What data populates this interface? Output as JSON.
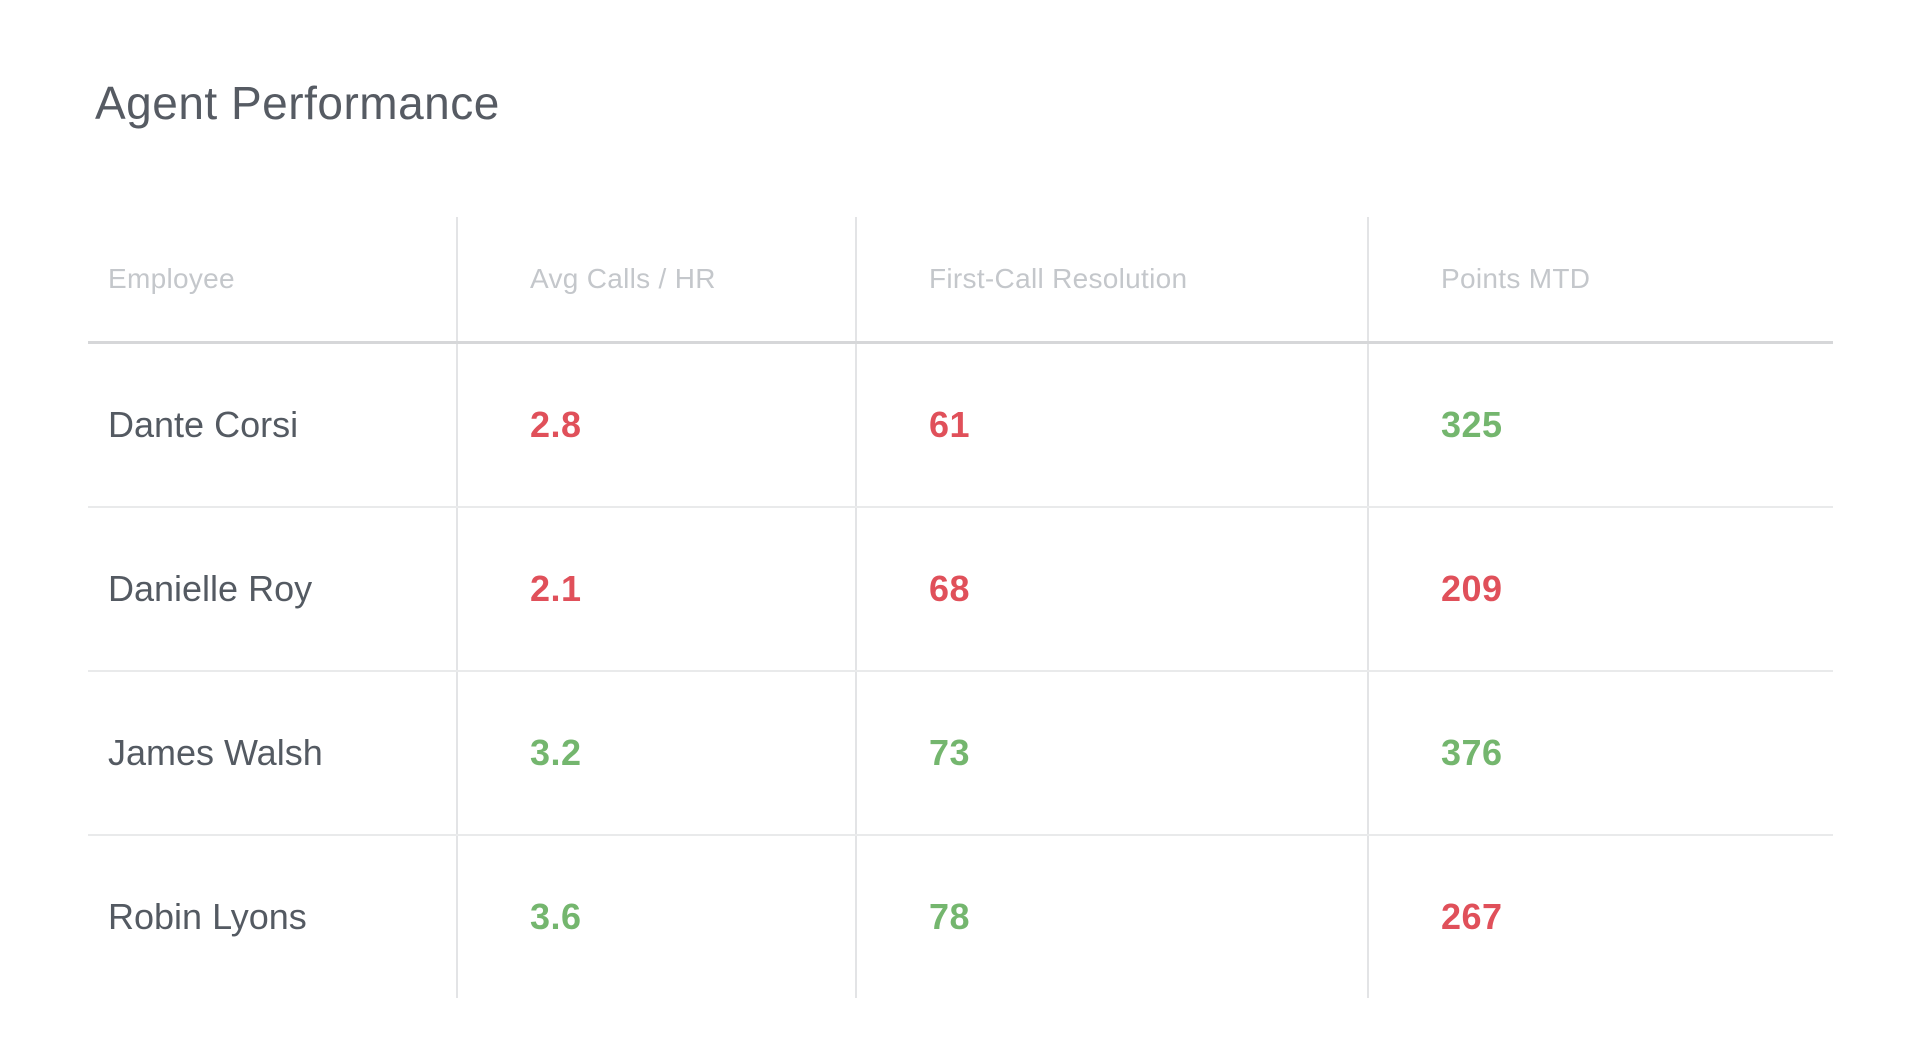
{
  "page": {
    "title": "Agent Performance"
  },
  "theme": {
    "background": "#ffffff",
    "title_color": "#565b63",
    "header_color": "#c4c7cb",
    "name_color": "#545a62",
    "negative": "#e0505a",
    "positive": "#74b66e",
    "header_line": "#d6d7d9",
    "row_line": "#e9eaeb",
    "col_line": "#e3e4e6"
  },
  "table": {
    "columns": {
      "employee": "Employee",
      "avg_calls": "Avg Calls / HR",
      "fcr": "First-Call Resolution",
      "points": "Points MTD"
    },
    "rows": [
      {
        "name": "Dante Corsi",
        "avg_calls": {
          "value": "2.8",
          "status": "red"
        },
        "fcr": {
          "value": "61",
          "status": "red"
        },
        "points": {
          "value": "325",
          "status": "green"
        }
      },
      {
        "name": "Danielle Roy",
        "avg_calls": {
          "value": "2.1",
          "status": "red"
        },
        "fcr": {
          "value": "68",
          "status": "red"
        },
        "points": {
          "value": "209",
          "status": "red"
        }
      },
      {
        "name": "James Walsh",
        "avg_calls": {
          "value": "3.2",
          "status": "green"
        },
        "fcr": {
          "value": "73",
          "status": "green"
        },
        "points": {
          "value": "376",
          "status": "green"
        }
      },
      {
        "name": "Robin Lyons",
        "avg_calls": {
          "value": "3.6",
          "status": "green"
        },
        "fcr": {
          "value": "78",
          "status": "green"
        },
        "points": {
          "value": "267",
          "status": "red"
        }
      }
    ]
  }
}
